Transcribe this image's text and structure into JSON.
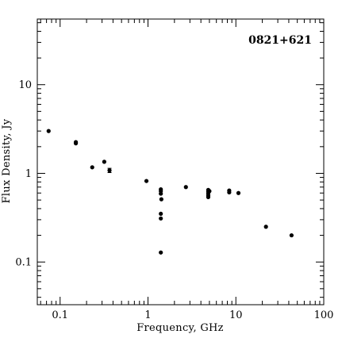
{
  "chart_data": {
    "type": "scatter",
    "title": "0821+621",
    "xlabel": "Frequency, GHz",
    "ylabel": "Flux Density, Jy",
    "x_scale": "log",
    "y_scale": "log",
    "xlim": [
      0.055,
      100
    ],
    "ylim": [
      0.033,
      55
    ],
    "grid": false,
    "legend": "none",
    "x_ticks": [
      {
        "value": 0.1,
        "label": "0.1"
      },
      {
        "value": 1,
        "label": "1"
      },
      {
        "value": 10,
        "label": "10"
      },
      {
        "value": 100,
        "label": "100"
      }
    ],
    "y_ticks": [
      {
        "value": 0.1,
        "label": "0.1"
      },
      {
        "value": 1,
        "label": "1"
      },
      {
        "value": 10,
        "label": "10"
      }
    ],
    "points": [
      {
        "x": 0.074,
        "y": 3.0
      },
      {
        "x": 0.151,
        "y": 2.25
      },
      {
        "x": 0.151,
        "y": 2.18
      },
      {
        "x": 0.232,
        "y": 1.17
      },
      {
        "x": 0.318,
        "y": 1.35
      },
      {
        "x": 0.365,
        "y": 1.08,
        "yerr": 0.06
      },
      {
        "x": 0.96,
        "y": 0.82
      },
      {
        "x": 1.4,
        "y": 0.66
      },
      {
        "x": 1.4,
        "y": 0.63
      },
      {
        "x": 1.4,
        "y": 0.59
      },
      {
        "x": 1.4,
        "y": 0.35
      },
      {
        "x": 1.4,
        "y": 0.31
      },
      {
        "x": 1.4,
        "y": 0.128
      },
      {
        "x": 1.42,
        "y": 0.51
      },
      {
        "x": 2.7,
        "y": 0.7
      },
      {
        "x": 4.85,
        "y": 0.65
      },
      {
        "x": 4.85,
        "y": 0.62
      },
      {
        "x": 4.85,
        "y": 0.59
      },
      {
        "x": 4.85,
        "y": 0.56
      },
      {
        "x": 4.85,
        "y": 0.54
      },
      {
        "x": 5.0,
        "y": 0.63
      },
      {
        "x": 8.4,
        "y": 0.64
      },
      {
        "x": 8.4,
        "y": 0.61
      },
      {
        "x": 10.7,
        "y": 0.6
      },
      {
        "x": 22,
        "y": 0.25
      },
      {
        "x": 43,
        "y": 0.2
      }
    ]
  }
}
